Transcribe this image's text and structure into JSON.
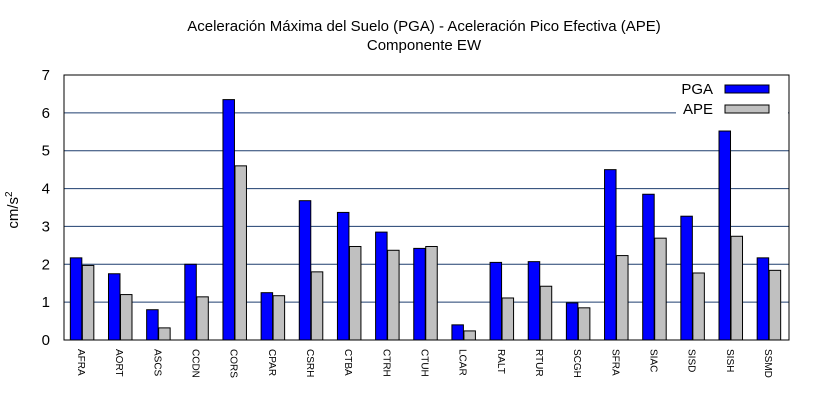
{
  "chart_data": {
    "type": "bar",
    "title": "Aceleración Máxima del Suelo (PGA) -  Aceleración Pico Efectiva (APE)",
    "subtitle": "Componente EW",
    "xlabel": "",
    "ylabel": "cm/s",
    "ylabel_superscript": "2",
    "ylim": [
      0,
      7
    ],
    "yticks": [
      "0",
      "1",
      "2",
      "3",
      "4",
      "5",
      "6",
      "7"
    ],
    "grid": true,
    "legend_position": "top-right",
    "categories": [
      "AFRA",
      "AORT",
      "ASCS",
      "CCDN",
      "CORS",
      "CPAR",
      "CSRH",
      "CTBA",
      "CTRH",
      "CTUH",
      "LCAR",
      "RALT",
      "RTUR",
      "SCGH",
      "SFRA",
      "SIAC",
      "SISD",
      "SISH",
      "SSMD"
    ],
    "series": [
      {
        "name": "PGA",
        "color": "#0000ff",
        "values": [
          2.17,
          1.75,
          0.8,
          2.0,
          6.35,
          1.25,
          3.68,
          3.37,
          2.85,
          2.42,
          0.4,
          2.05,
          2.07,
          0.98,
          4.5,
          3.85,
          3.27,
          5.52,
          2.17
        ]
      },
      {
        "name": "APE",
        "color": "#c0c0c0",
        "values": [
          1.97,
          1.2,
          0.32,
          1.14,
          4.6,
          1.17,
          1.8,
          2.47,
          2.37,
          2.47,
          0.24,
          1.11,
          1.42,
          0.85,
          2.23,
          2.69,
          1.77,
          2.74,
          1.84
        ]
      }
    ]
  }
}
